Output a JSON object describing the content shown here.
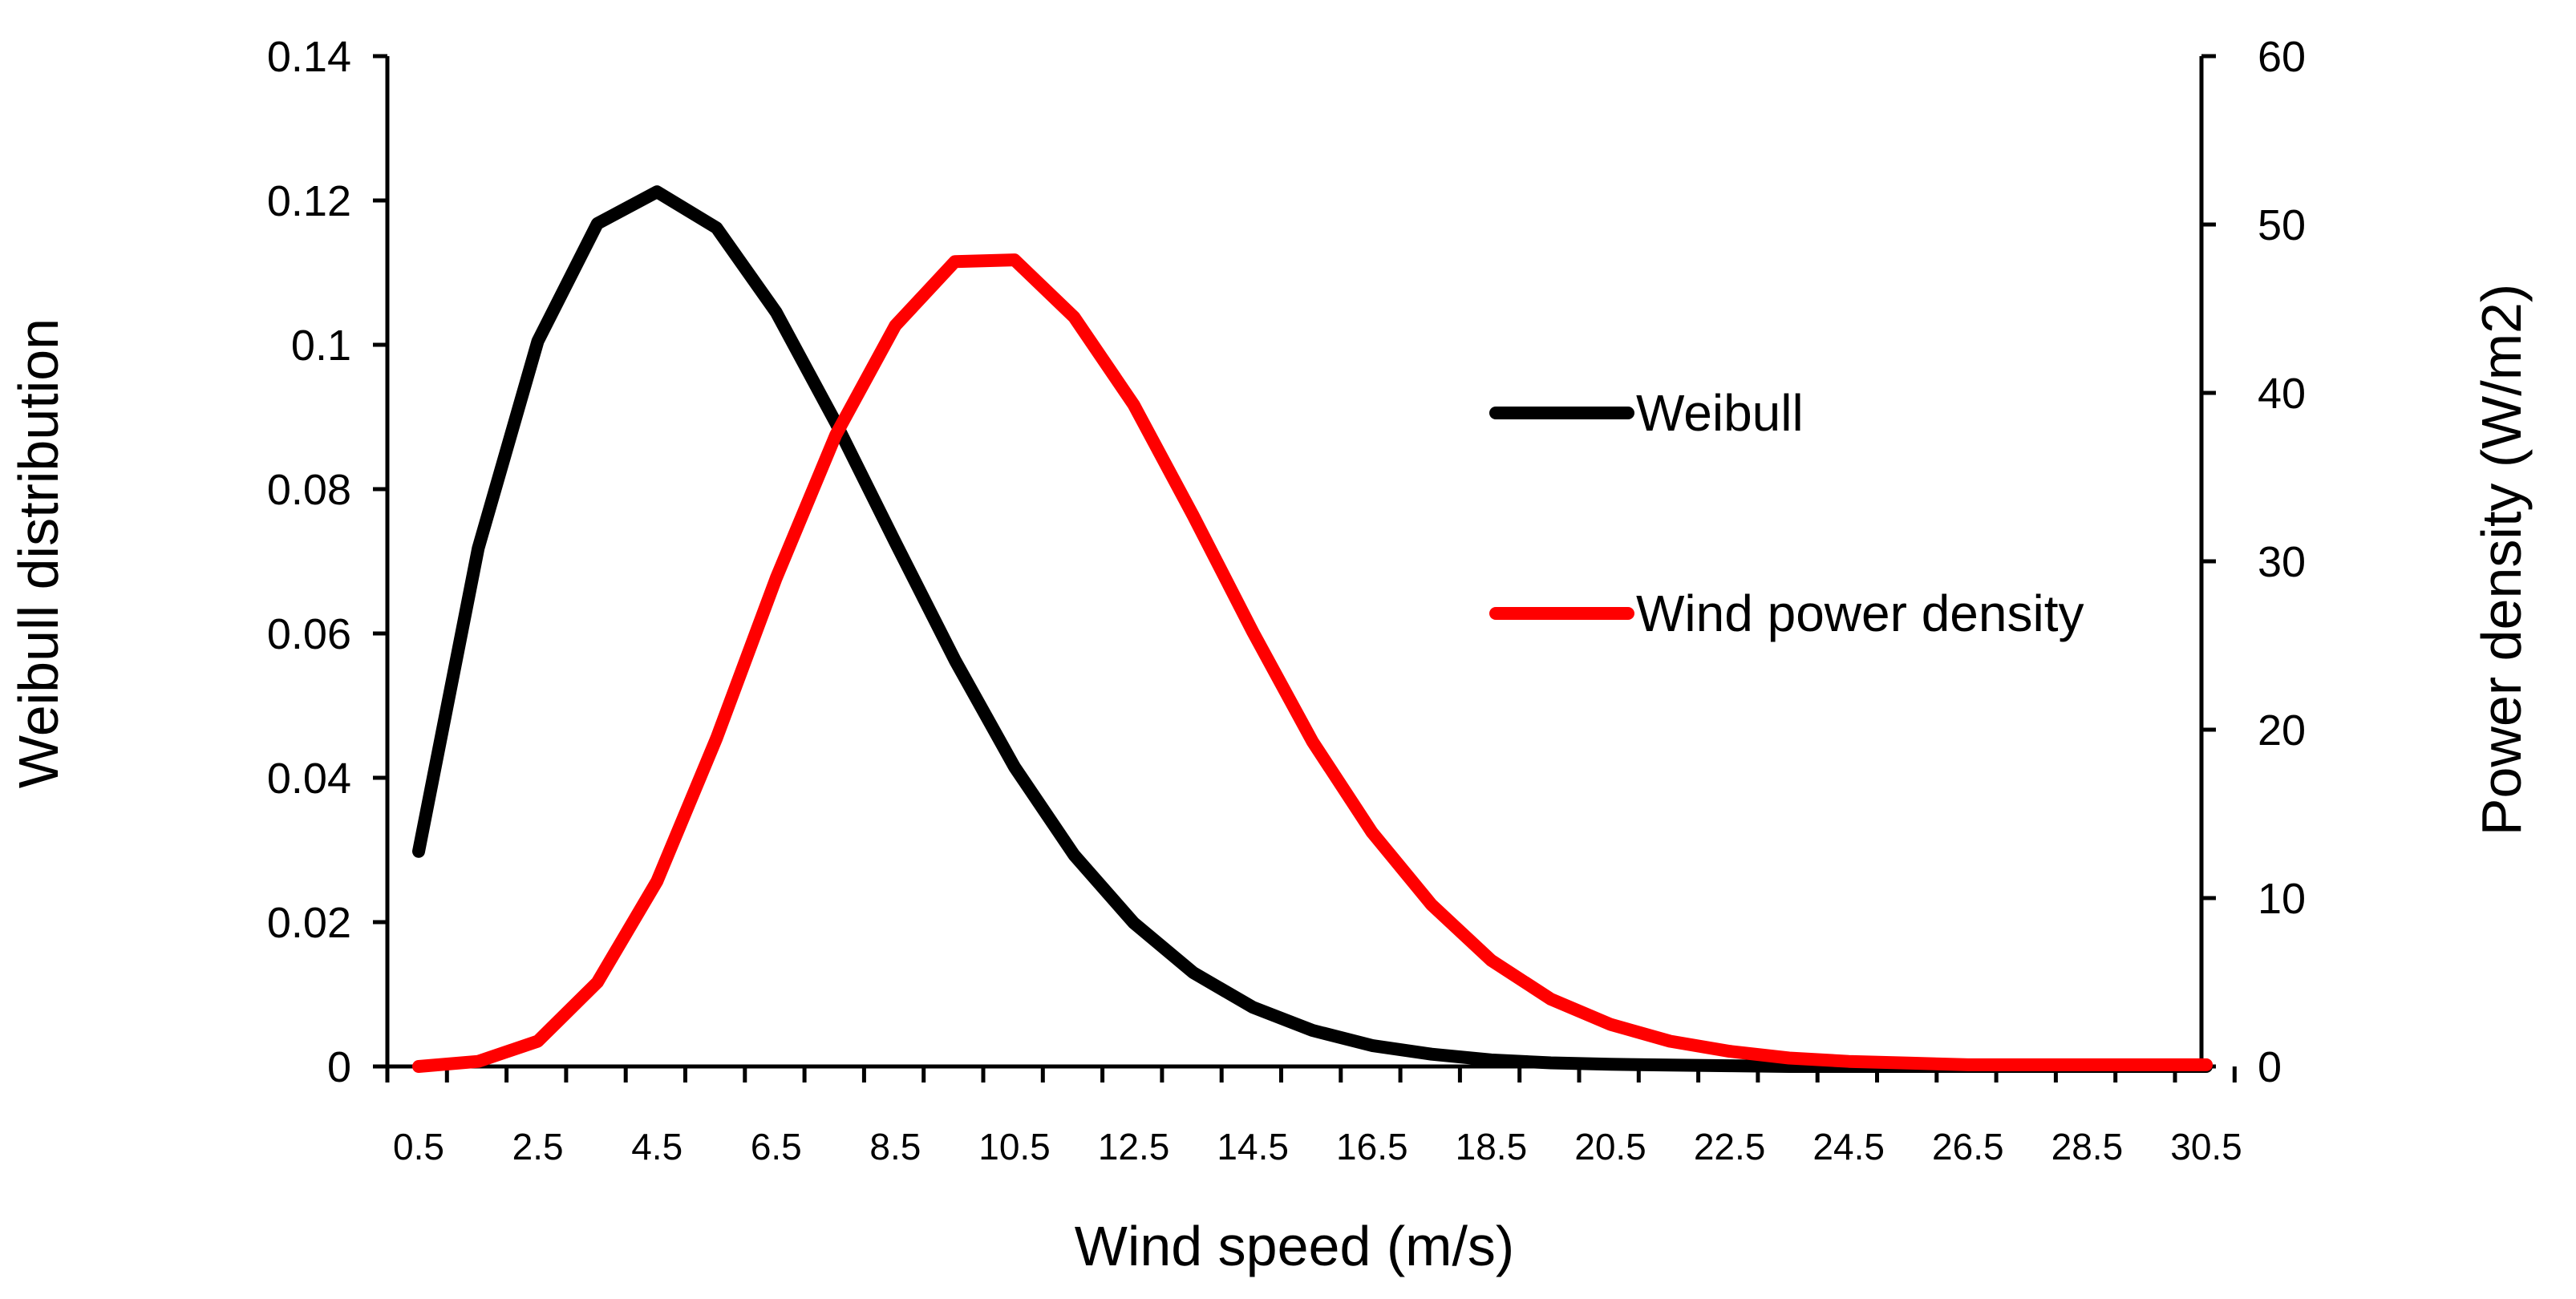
{
  "chart_data": {
    "type": "line",
    "title": "",
    "xlabel": "Wind speed (m/s)",
    "ylabel": "Weibull distribution",
    "y2label": "Power density (W/m2)",
    "x": [
      0.5,
      1.5,
      2.5,
      3.5,
      4.5,
      5.5,
      6.5,
      7.5,
      8.5,
      9.5,
      10.5,
      11.5,
      12.5,
      13.5,
      14.5,
      15.5,
      16.5,
      17.5,
      18.5,
      19.5,
      20.5,
      21.5,
      22.5,
      23.5,
      24.5,
      25.5,
      26.5,
      27.5,
      28.5,
      29.5,
      30.5
    ],
    "x_tick_labels": [
      "0.5",
      "2.5",
      "4.5",
      "6.5",
      "8.5",
      "10.5",
      "12.5",
      "14.5",
      "16.5",
      "18.5",
      "20.5",
      "22.5",
      "24.5",
      "26.5",
      "28.5",
      "30.5"
    ],
    "ylim": [
      0,
      0.14
    ],
    "y_ticks": [
      0,
      0.02,
      0.04,
      0.06,
      0.08,
      0.1,
      0.12,
      0.14
    ],
    "y_tick_labels": [
      "0",
      "0.02",
      "0.04",
      "0.06",
      "0.08",
      "0.1",
      "0.12",
      "0.14"
    ],
    "y2lim": [
      0,
      60
    ],
    "y2_ticks": [
      0,
      10,
      20,
      30,
      40,
      50,
      60
    ],
    "y2_tick_labels": [
      "0",
      "10",
      "20",
      "30",
      "40",
      "50",
      "60"
    ],
    "grid": false,
    "legend_position": "right-center",
    "series": [
      {
        "name": "Weibull",
        "axis": "left",
        "color": "#000000",
        "values": [
          0.0298,
          0.0718,
          0.1005,
          0.1168,
          0.1212,
          0.1162,
          0.1045,
          0.0892,
          0.0726,
          0.0563,
          0.0415,
          0.0293,
          0.0199,
          0.013,
          0.0082,
          0.005,
          0.0029,
          0.0017,
          0.0009,
          0.0005,
          0.0003,
          0.0002,
          0.0001,
          0.0,
          0.0,
          0.0,
          0.0,
          0.0,
          0.0,
          0.0,
          0.0
        ]
      },
      {
        "name": "Wind power density",
        "axis": "right",
        "color": "#ff0000",
        "values": [
          0.0,
          0.3,
          1.5,
          5.0,
          11.0,
          19.5,
          29.0,
          37.5,
          44.0,
          47.8,
          47.9,
          44.5,
          39.3,
          32.7,
          25.8,
          19.3,
          13.9,
          9.6,
          6.3,
          4.0,
          2.5,
          1.5,
          0.9,
          0.5,
          0.3,
          0.2,
          0.1,
          0.1,
          0.1,
          0.1,
          0.1
        ]
      }
    ]
  }
}
